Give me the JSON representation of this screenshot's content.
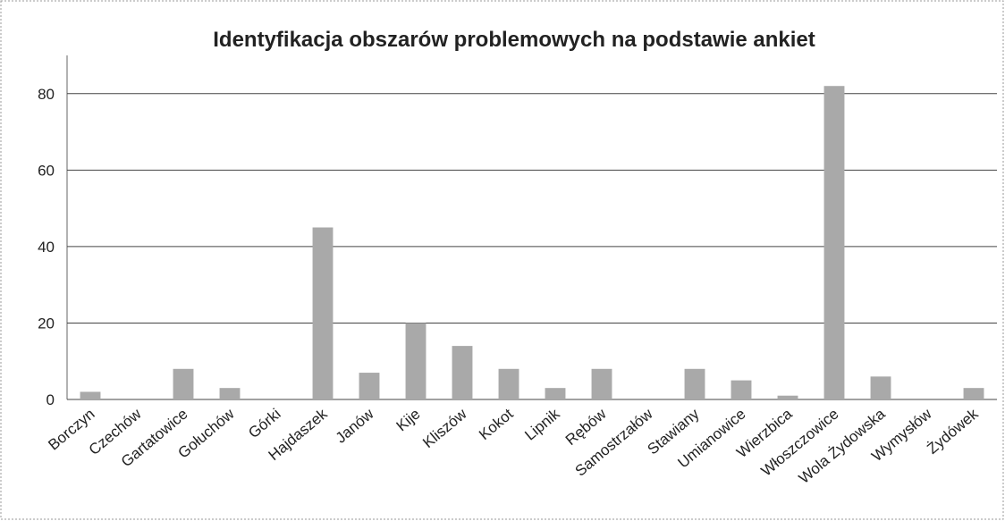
{
  "chart_data": {
    "type": "bar",
    "title": "Identyfikacja obszarów problemowych na podstawie ankiet",
    "categories": [
      "Borczyn",
      "Czechów",
      "Gartatowice",
      "Gołuchów",
      "Górki",
      "Hajdaszek",
      "Janów",
      "Kije",
      "Kliszów",
      "Kokot",
      "Lipnik",
      "Rębów",
      "Samostrzałów",
      "Stawiany",
      "Umianowice",
      "Wierzbica",
      "Włoszczowice",
      "Wola Żydowska",
      "Wymysłów",
      "Żydówek"
    ],
    "values": [
      2,
      0,
      8,
      3,
      0,
      45,
      7,
      20,
      14,
      8,
      3,
      8,
      0,
      8,
      5,
      1,
      82,
      6,
      0,
      3
    ],
    "color": "#a9a9a9",
    "ylim": [
      0,
      90
    ],
    "yticks": [
      0,
      20,
      40,
      60,
      80
    ],
    "grid": true
  }
}
